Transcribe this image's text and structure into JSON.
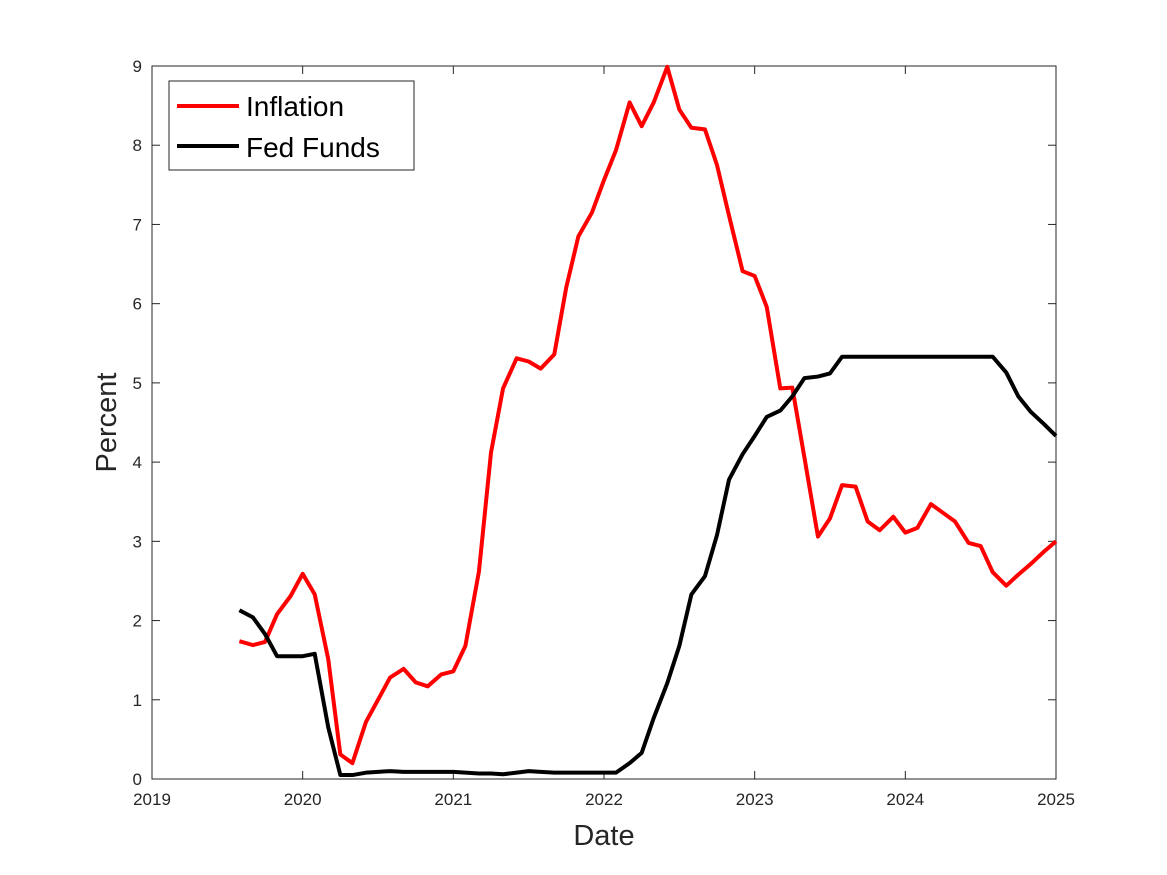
{
  "chart_data": {
    "type": "line",
    "title": "",
    "xlabel": "Date",
    "ylabel": "Percent",
    "xlim": [
      2019,
      2025
    ],
    "ylim": [
      0,
      9
    ],
    "x_ticks": [
      "2019",
      "2020",
      "2021",
      "2022",
      "2023",
      "2024",
      "2025"
    ],
    "y_ticks": [
      "0",
      "1",
      "2",
      "3",
      "4",
      "5",
      "6",
      "7",
      "8",
      "9"
    ],
    "grid": false,
    "legend_position": "top-left",
    "series": [
      {
        "name": "Inflation",
        "color": "#ff0000",
        "x": [
          2019.58,
          2019.67,
          2019.75,
          2019.83,
          2019.92,
          2020.0,
          2020.08,
          2020.17,
          2020.25,
          2020.33,
          2020.42,
          2020.5,
          2020.58,
          2020.67,
          2020.75,
          2020.83,
          2020.92,
          2021.0,
          2021.08,
          2021.17,
          2021.25,
          2021.33,
          2021.42,
          2021.5,
          2021.58,
          2021.67,
          2021.75,
          2021.83,
          2021.92,
          2022.0,
          2022.08,
          2022.17,
          2022.25,
          2022.33,
          2022.42,
          2022.5,
          2022.58,
          2022.67,
          2022.75,
          2022.83,
          2022.92,
          2023.0,
          2023.08,
          2023.17,
          2023.25,
          2023.33,
          2023.42,
          2023.5,
          2023.58,
          2023.67,
          2023.75,
          2023.83,
          2023.92,
          2024.0,
          2024.08,
          2024.17,
          2024.25,
          2024.33,
          2024.42,
          2024.5,
          2024.58,
          2024.67,
          2024.75,
          2024.83,
          2024.92,
          2025.0
        ],
        "y": [
          1.74,
          1.69,
          1.73,
          2.08,
          2.31,
          2.59,
          2.33,
          1.51,
          0.31,
          0.2,
          0.72,
          1.0,
          1.28,
          1.39,
          1.22,
          1.17,
          1.32,
          1.36,
          1.68,
          2.62,
          4.12,
          4.93,
          5.31,
          5.27,
          5.18,
          5.36,
          6.21,
          6.85,
          7.15,
          7.56,
          7.94,
          8.54,
          8.24,
          8.54,
          8.99,
          8.45,
          8.22,
          8.2,
          7.75,
          7.11,
          6.41,
          6.35,
          5.96,
          4.93,
          4.94,
          4.06,
          3.06,
          3.29,
          3.71,
          3.69,
          3.25,
          3.14,
          3.31,
          3.11,
          3.17,
          3.47,
          3.36,
          3.25,
          2.98,
          2.94,
          2.61,
          2.44,
          2.58,
          2.71,
          2.87,
          3.0
        ]
      },
      {
        "name": "Fed Funds",
        "color": "#000000",
        "x": [
          2019.58,
          2019.67,
          2019.75,
          2019.83,
          2019.92,
          2020.0,
          2020.08,
          2020.17,
          2020.25,
          2020.33,
          2020.42,
          2020.5,
          2020.58,
          2020.67,
          2020.75,
          2020.83,
          2020.92,
          2021.0,
          2021.08,
          2021.17,
          2021.25,
          2021.33,
          2021.42,
          2021.5,
          2021.58,
          2021.67,
          2021.75,
          2021.83,
          2021.92,
          2022.0,
          2022.08,
          2022.17,
          2022.25,
          2022.33,
          2022.42,
          2022.5,
          2022.58,
          2022.67,
          2022.75,
          2022.83,
          2022.92,
          2023.0,
          2023.08,
          2023.17,
          2023.25,
          2023.33,
          2023.42,
          2023.5,
          2023.58,
          2023.67,
          2023.75,
          2023.83,
          2023.92,
          2024.0,
          2024.08,
          2024.17,
          2024.25,
          2024.33,
          2024.42,
          2024.5,
          2024.58,
          2024.67,
          2024.75,
          2024.83,
          2024.92,
          2025.0
        ],
        "y": [
          2.13,
          2.04,
          1.83,
          1.55,
          1.55,
          1.55,
          1.58,
          0.65,
          0.05,
          0.05,
          0.08,
          0.09,
          0.1,
          0.09,
          0.09,
          0.09,
          0.09,
          0.09,
          0.08,
          0.07,
          0.07,
          0.06,
          0.08,
          0.1,
          0.09,
          0.08,
          0.08,
          0.08,
          0.08,
          0.08,
          0.08,
          0.2,
          0.33,
          0.77,
          1.21,
          1.68,
          2.33,
          2.56,
          3.08,
          3.78,
          4.1,
          4.33,
          4.57,
          4.65,
          4.83,
          5.06,
          5.08,
          5.12,
          5.33,
          5.33,
          5.33,
          5.33,
          5.33,
          5.33,
          5.33,
          5.33,
          5.33,
          5.33,
          5.33,
          5.33,
          5.33,
          5.13,
          4.83,
          4.64,
          4.48,
          4.33
        ]
      }
    ]
  }
}
